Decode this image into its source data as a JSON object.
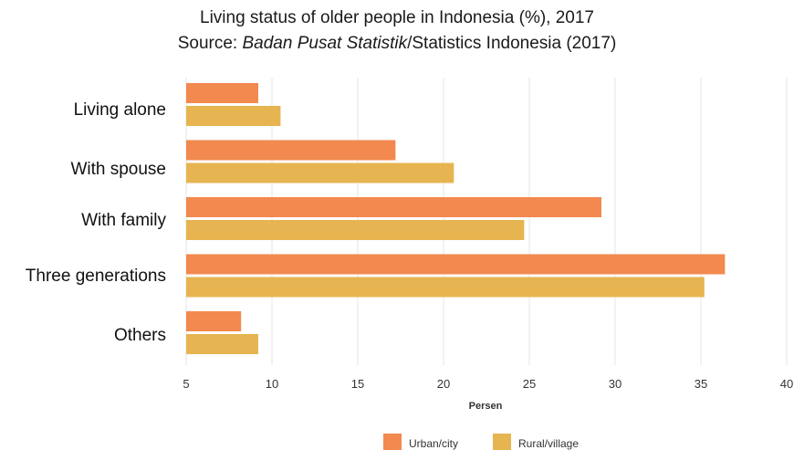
{
  "title": "Living status of older people in Indonesia (%),  2017",
  "subtitle": {
    "prefix": "Source: ",
    "italic": "Badan Pusat Statistik",
    "suffix": "/Statistics Indonesia (2017)"
  },
  "colors": {
    "urban": "#f2894e",
    "rural": "#e6b450",
    "grid": "#e6e6e6"
  },
  "chart_data": {
    "type": "bar",
    "orientation": "horizontal",
    "categories": [
      "Living alone",
      "With spouse",
      "With family",
      "Three generations",
      "Others"
    ],
    "series": [
      {
        "name": "Urban/city",
        "values": [
          9.2,
          17.2,
          29.2,
          36.4,
          8.2
        ]
      },
      {
        "name": "Rural/village",
        "values": [
          10.5,
          20.6,
          24.7,
          35.2,
          9.2
        ]
      }
    ],
    "xlabel": "Persen",
    "xlim": [
      5,
      40
    ],
    "xticks": [
      5,
      10,
      15,
      20,
      25,
      30,
      35,
      40
    ],
    "grid": true,
    "legend_position": "bottom"
  }
}
